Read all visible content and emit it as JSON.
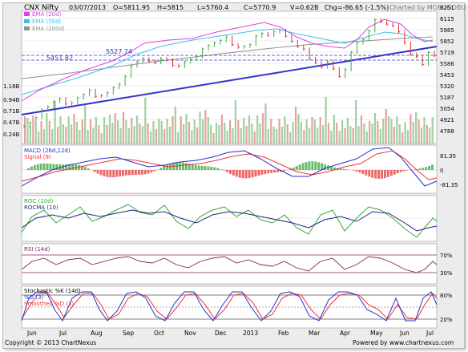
{
  "header": {
    "symbol": "CNX Nifty",
    "date": "03/07/2013",
    "open": "O=5811.95",
    "high": "H=5815",
    "low": "L=5760.4",
    "close": "C=5770.9",
    "volume": "V=0.62B",
    "change": "Chg=-86.65 (-1.5%)",
    "charted_by": "Charted by MOBUGOBU"
  },
  "footer": {
    "copyright": "Copyright © 2013 ChartNexus",
    "powered": "Powered by www.chartnexus.com"
  },
  "colors": {
    "price_up": "#44aa44",
    "price_down": "#dd3333",
    "ema20": "#e040e0",
    "ema50": "#40c0e8",
    "ema200": "#909090",
    "trendline": "#3333cc",
    "macd": "#2233cc",
    "signal": "#ee3333",
    "roc": "#33aa33",
    "rocma": "#222288",
    "rsi": "#8a2060",
    "stoch_k": "#2233cc",
    "stoch_d": "#ee3333"
  },
  "chart_data": [
    {
      "type": "line",
      "panel": "price",
      "title": "CNX Nifty",
      "legend": [
        "EMA (20d)",
        "EMA (50d)",
        "EMA (200d)"
      ],
      "legend_placement": "top-left",
      "x_ticks": [
        "Jun",
        "Jul",
        "Aug",
        "Sep",
        "Oct",
        "Nov",
        "Dec",
        "2013",
        "Feb",
        "Mar",
        "Apr",
        "May",
        "Jun",
        "Jul"
      ],
      "y_ticks": [
        6251,
        6115,
        5985,
        5852,
        5719,
        5586,
        5453,
        5320,
        5187,
        5054,
        4921,
        4788
      ],
      "volume_ticks": [
        "1.18B",
        "0.94B",
        "0.71B",
        "0.47B",
        "0.24B"
      ],
      "ylim": [
        4750,
        6290
      ],
      "annotations": [
        "5527.74",
        "5451.82"
      ],
      "horizontal_levels": [
        5527.74,
        5451.82
      ],
      "close_series": [
        4950,
        4990,
        5050,
        5140,
        5180,
        5240,
        5270,
        5210,
        5225,
        5280,
        5320,
        5370,
        5300,
        5310,
        5340,
        5400,
        5440,
        5530,
        5650,
        5700,
        5740,
        5710,
        5690,
        5740,
        5720,
        5660,
        5650,
        5700,
        5730,
        5760,
        5850,
        5890,
        5920,
        5950,
        5990,
        5900,
        5870,
        5880,
        5900,
        6000,
        6030,
        6010,
        6050,
        6070,
        6000,
        5940,
        5880,
        5850,
        5740,
        5690,
        5640,
        5700,
        5620,
        5530,
        5610,
        5810,
        5920,
        5960,
        6060,
        6190,
        6170,
        6140,
        6120,
        6050,
        5920,
        5790,
        5760,
        5670,
        5810,
        5770.9
      ]
    },
    {
      "type": "line",
      "panel": "macd",
      "legend": [
        "MACD (26d,12d)",
        "Signal (9)"
      ],
      "y_ticks": [
        "81.35",
        "0",
        "-81.35"
      ]
    },
    {
      "type": "line",
      "panel": "roc",
      "legend": [
        "ROC (10d)",
        "ROCMA (10)"
      ]
    },
    {
      "type": "line",
      "panel": "rsi",
      "legend": [
        "RSI (14d)"
      ],
      "y_ticks": [
        "70%",
        "30%"
      ],
      "levels": [
        70,
        30
      ]
    },
    {
      "type": "line",
      "panel": "stochastic",
      "legend": [
        "Stochastic %K (14d)",
        "%D (3)",
        "Smoothed %D (3)"
      ],
      "y_ticks": [
        "80%",
        "20%"
      ],
      "levels": [
        80,
        20
      ]
    }
  ]
}
